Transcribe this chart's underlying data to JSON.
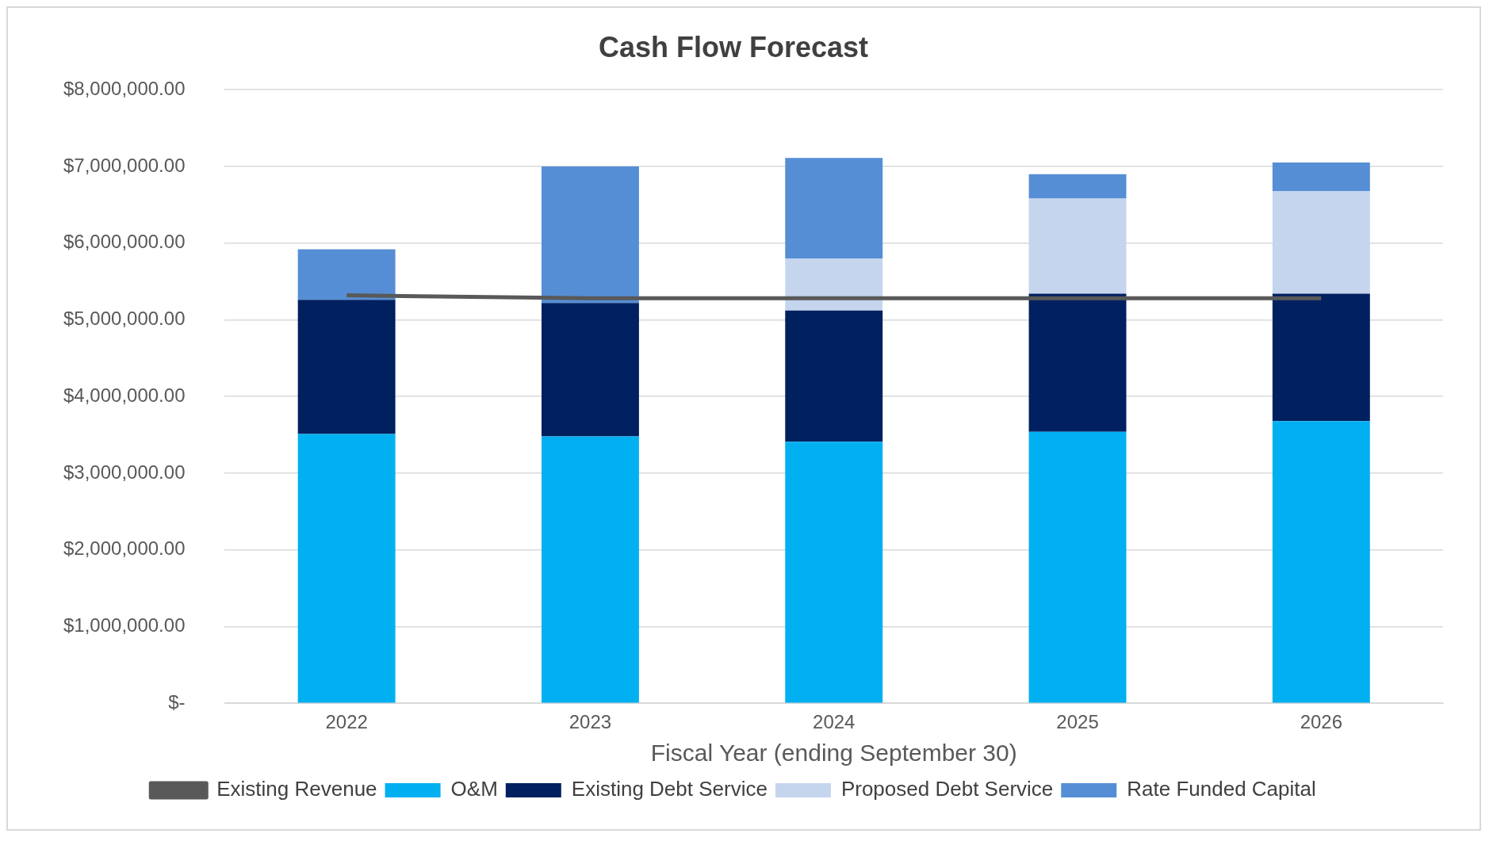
{
  "chart_data": {
    "type": "bar",
    "stacked": true,
    "title": "Cash Flow Forecast",
    "xlabel": "Fiscal Year (ending September 30)",
    "categories": [
      "2022",
      "2023",
      "2024",
      "2025",
      "2026"
    ],
    "series": [
      {
        "name": "O&M",
        "color": "#00b0f0",
        "values": [
          3510000,
          3480000,
          3410000,
          3540000,
          3680000
        ]
      },
      {
        "name": "Existing Debt Service",
        "color": "#002060",
        "values": [
          1750000,
          1740000,
          1710000,
          1800000,
          1660000
        ]
      },
      {
        "name": "Proposed Debt Service",
        "color": "#c5d5ee",
        "values": [
          null,
          null,
          680000,
          1240000,
          1340000
        ]
      },
      {
        "name": "Rate Funded Capital",
        "color": "#558ed5",
        "values": [
          660000,
          1780000,
          1310000,
          320000,
          370000
        ]
      },
      {
        "name": "Existing Revenue",
        "type": "line",
        "color": "#595959",
        "values": [
          5320000,
          5280000,
          5280000,
          5280000,
          5280000
        ]
      }
    ],
    "ylim": [
      0,
      8000000
    ],
    "yticks": [
      {
        "value": 0,
        "label": "$-"
      },
      {
        "value": 1000000,
        "label": "$1,000,000.00"
      },
      {
        "value": 2000000,
        "label": "$2,000,000.00"
      },
      {
        "value": 3000000,
        "label": "$3,000,000.00"
      },
      {
        "value": 4000000,
        "label": "$4,000,000.00"
      },
      {
        "value": 5000000,
        "label": "$5,000,000.00"
      },
      {
        "value": 6000000,
        "label": "$6,000,000.00"
      },
      {
        "value": 7000000,
        "label": "$7,000,000.00"
      },
      {
        "value": 8000000,
        "label": "$8,000,000.00"
      }
    ],
    "grid": "y",
    "legend": "bottom"
  }
}
